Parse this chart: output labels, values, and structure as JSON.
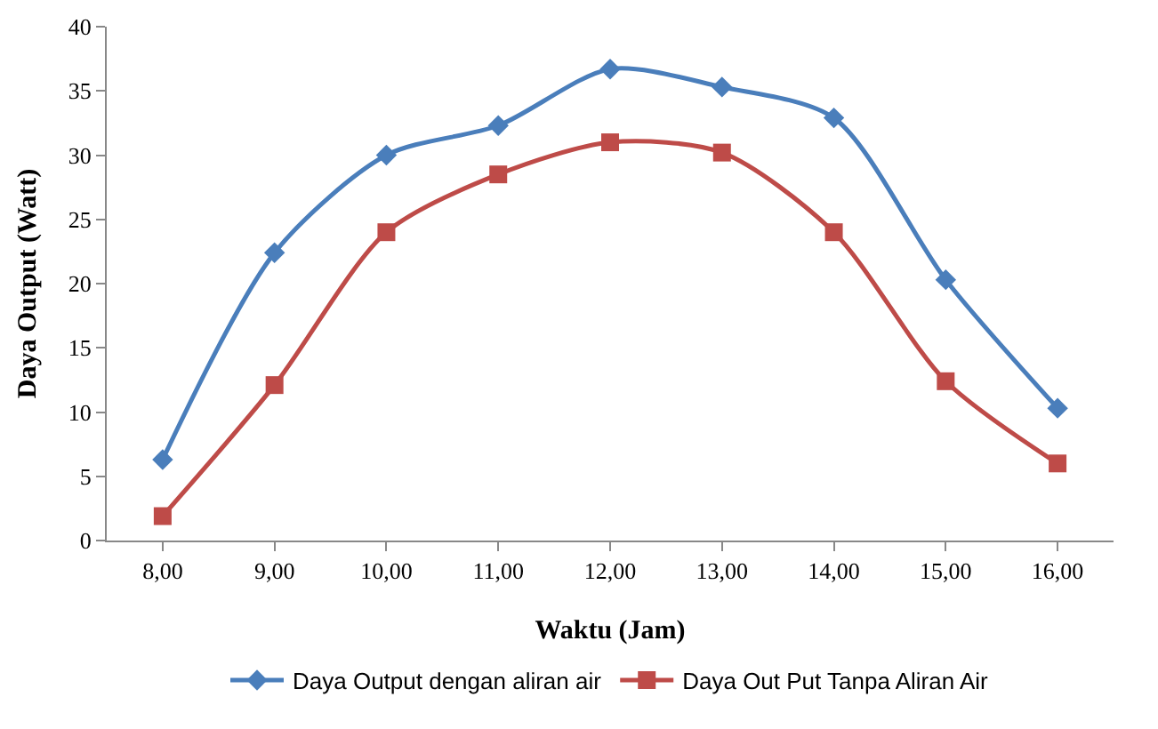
{
  "chart_data": {
    "type": "line",
    "xlabel": "Waktu (Jam)",
    "ylabel": "Daya Output (Watt)",
    "categories": [
      "8,00",
      "9,00",
      "10,00",
      "11,00",
      "12,00",
      "13,00",
      "14,00",
      "15,00",
      "16,00"
    ],
    "series": [
      {
        "name": "Daya Output dengan aliran air",
        "color": "#4a7ebb",
        "marker": "diamond",
        "values": [
          6.3,
          22.4,
          30.0,
          32.3,
          36.7,
          35.3,
          32.9,
          20.3,
          10.3
        ]
      },
      {
        "name": "Daya Out Put Tanpa Aliran Air",
        "color": "#be4b48",
        "marker": "square",
        "values": [
          1.9,
          12.1,
          24.0,
          28.5,
          31.0,
          30.2,
          24.0,
          12.4,
          6.0
        ]
      }
    ],
    "ylim": [
      0,
      40
    ],
    "yticks": [
      0,
      5,
      10,
      15,
      20,
      25,
      30,
      35,
      40
    ],
    "grid": false,
    "legend": "bottom",
    "line_style": "solid"
  }
}
